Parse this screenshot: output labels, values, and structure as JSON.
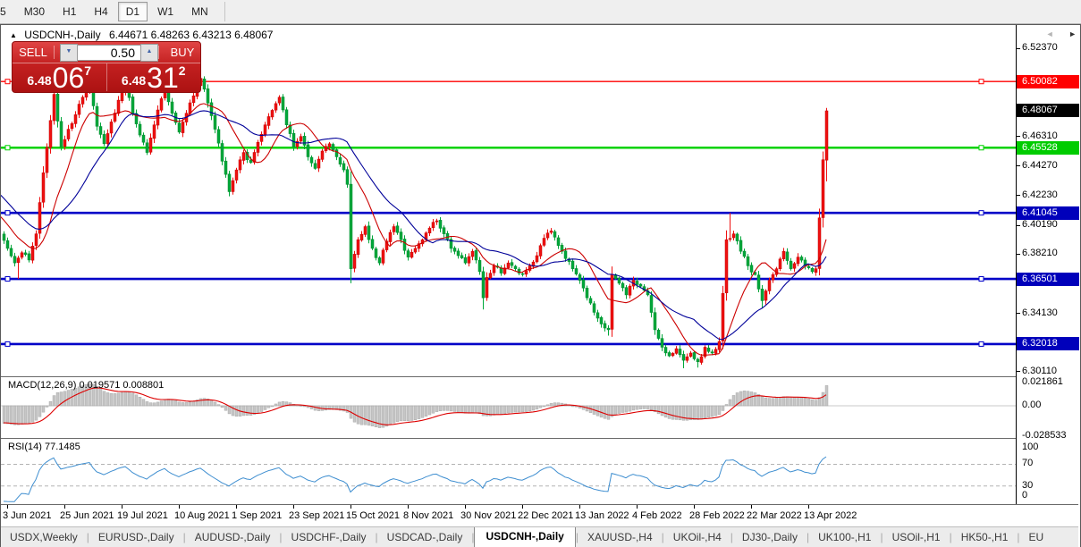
{
  "toolbar": {
    "timeframes": [
      "5",
      "M30",
      "H1",
      "H4",
      "D1",
      "W1",
      "MN"
    ],
    "active": "D1"
  },
  "title": {
    "collapse_icon": "▲",
    "symbol_label": "USDCNH-,Daily",
    "ohlc": "6.44671 6.48263 6.43213 6.48067"
  },
  "trade_panel": {
    "sell_label": "SELL",
    "buy_label": "BUY",
    "volume": "0.50",
    "volume_down_icon": "▼",
    "volume_up_icon": "▲",
    "sell_price": {
      "prefix": "6.48",
      "big": "06",
      "sup": "7"
    },
    "buy_price": {
      "prefix": "6.48",
      "big": "31",
      "sup": "2"
    }
  },
  "price_axis": {
    "plain_ticks": [
      {
        "text": "6.52370",
        "price": 6.5237
      },
      {
        "text": "6.46310",
        "price": 6.4631
      },
      {
        "text": "6.44270",
        "price": 6.4427
      },
      {
        "text": "6.42230",
        "price": 6.4223
      },
      {
        "text": "6.40190",
        "price": 6.4019
      },
      {
        "text": "6.38210",
        "price": 6.3821
      },
      {
        "text": "6.36170",
        "price": 6.3617
      },
      {
        "text": "6.34130",
        "price": 6.3413
      },
      {
        "text": "6.30110",
        "price": 6.3011
      }
    ],
    "line_labels": [
      {
        "text": "6.50082",
        "price": 6.50082,
        "bg": "#ff0000",
        "fg": "#ffffff",
        "name": "resistance-price-label"
      },
      {
        "text": "6.48067",
        "price": 6.48067,
        "bg": "#000000",
        "fg": "#ffffff",
        "name": "current-price-label"
      },
      {
        "text": "6.45528",
        "price": 6.45528,
        "bg": "#00cc00",
        "fg": "#ffffff",
        "name": "green-level-label"
      },
      {
        "text": "6.41045",
        "price": 6.41045,
        "bg": "#0000bb",
        "fg": "#ffffff",
        "name": "blue-level-1-label"
      },
      {
        "text": "6.36501",
        "price": 6.36501,
        "bg": "#0000bb",
        "fg": "#ffffff",
        "name": "blue-level-2-label"
      },
      {
        "text": "6.32018",
        "price": 6.32018,
        "bg": "#0000bb",
        "fg": "#ffffff",
        "name": "blue-level-3-label"
      }
    ]
  },
  "macd": {
    "label": "MACD(12,26,9) 0.019571 0.008801",
    "ticks": [
      {
        "text": "0.021861",
        "value": 0.021861
      },
      {
        "text": "0.00",
        "value": 0
      },
      {
        "text": "-0.028533",
        "value": -0.028533
      }
    ]
  },
  "rsi": {
    "label": "RSI(14) 77.1485",
    "ticks": [
      {
        "text": "100",
        "value": 100
      },
      {
        "text": "70",
        "value": 70
      },
      {
        "text": "30",
        "value": 30
      },
      {
        "text": "0",
        "value": 0
      }
    ],
    "guide_levels": [
      70,
      30
    ]
  },
  "date_axis": [
    "3 Jun 2021",
    "25 Jun 2021",
    "19 Jul 2021",
    "10 Aug 2021",
    "1 Sep 2021",
    "23 Sep 2021",
    "15 Oct 2021",
    "8 Nov 2021",
    "30 Nov 2021",
    "22 Dec 2021",
    "13 Jan 2022",
    "4 Feb 2022",
    "28 Feb 2022",
    "22 Mar 2022",
    "13 Apr 2022"
  ],
  "tabs": {
    "items": [
      "USDX,Weekly",
      "EURUSD-,Daily",
      "AUDUSD-,Daily",
      "USDCHF-,Daily",
      "USDCAD-,Daily",
      "USDCNH-,Daily",
      "XAUUSD-,H4",
      "UKOil-,H4",
      "DJ30-,Daily",
      "UK100-,H1",
      "USOil-,H1",
      "HK50-,H1",
      "EU"
    ],
    "active_index": 5,
    "scroll_left_icon": "◄",
    "scroll_right_icon": "►"
  },
  "chart_data": {
    "type": "candlestick",
    "symbol": "USDCNH",
    "timeframe": "Daily",
    "bars_visible": 230,
    "visible_range": {
      "high": 6.5237,
      "low": 6.298
    },
    "last_bar_ohlc": {
      "open": 6.44671,
      "high": 6.48263,
      "low": 6.43213,
      "close": 6.48067
    },
    "levels": {
      "hlines": [
        {
          "price": 6.50082,
          "color": "#ff0000",
          "width": 1.4,
          "name": "resistance-line"
        },
        {
          "price": 6.45528,
          "color": "#00d200",
          "width": 2.6,
          "name": "green-support-line"
        },
        {
          "price": 6.41045,
          "color": "#0000c8",
          "width": 2.6,
          "name": "blue-line-1"
        },
        {
          "price": 6.36501,
          "color": "#0000c8",
          "width": 2.6,
          "name": "blue-line-2"
        },
        {
          "price": 6.32018,
          "color": "#0000c8",
          "width": 2.6,
          "name": "blue-line-3"
        }
      ]
    },
    "indicators": {
      "ma_fast_period": 12,
      "ma_slow_period": 24,
      "macd": {
        "fast": 12,
        "slow": 26,
        "signal": 9,
        "value": 0.019571,
        "signal_value": 0.008801
      },
      "rsi": {
        "period": 14,
        "value": 77.1485
      }
    },
    "colors": {
      "bull": "#ee1111",
      "bull_dark": "#c40000",
      "bear": "#00a73a",
      "bear_dark": "#008a2e",
      "ma_fast": "#cc0000",
      "ma_slow": "#000099",
      "macd_hist": "#c6c6c6",
      "macd_hist_edge": "#9e9e9e",
      "macd_signal": "#dd0000",
      "rsi_line": "#3e8ed0",
      "rsi_guide": "#b4b4b4"
    },
    "price_path_keyframes": [
      [
        0,
        6.386
      ],
      [
        2,
        6.376
      ],
      [
        4,
        6.383
      ],
      [
        6,
        6.378
      ],
      [
        8,
        6.396
      ],
      [
        10,
        6.438
      ],
      [
        12,
        6.474
      ],
      [
        13,
        6.492
      ],
      [
        15,
        6.456
      ],
      [
        17,
        6.468
      ],
      [
        19,
        6.478
      ],
      [
        21,
        6.49
      ],
      [
        23,
        6.5
      ],
      [
        25,
        6.47
      ],
      [
        27,
        6.458
      ],
      [
        29,
        6.473
      ],
      [
        31,
        6.488
      ],
      [
        33,
        6.498
      ],
      [
        35,
        6.479
      ],
      [
        37,
        6.464
      ],
      [
        39,
        6.452
      ],
      [
        41,
        6.471
      ],
      [
        43,
        6.489
      ],
      [
        44,
        6.497
      ],
      [
        46,
        6.479
      ],
      [
        48,
        6.466
      ],
      [
        50,
        6.479
      ],
      [
        52,
        6.491
      ],
      [
        54,
        6.503
      ],
      [
        56,
        6.486
      ],
      [
        58,
        6.468
      ],
      [
        60,
        6.446
      ],
      [
        62,
        6.425
      ],
      [
        64,
        6.44
      ],
      [
        66,
        6.452
      ],
      [
        68,
        6.445
      ],
      [
        70,
        6.459
      ],
      [
        72,
        6.471
      ],
      [
        74,
        6.481
      ],
      [
        76,
        6.49
      ],
      [
        78,
        6.471
      ],
      [
        80,
        6.456
      ],
      [
        82,
        6.463
      ],
      [
        84,
        6.449
      ],
      [
        86,
        6.441
      ],
      [
        88,
        6.453
      ],
      [
        90,
        6.458
      ],
      [
        92,
        6.449
      ],
      [
        94,
        6.44
      ],
      [
        95,
        6.43
      ],
      [
        96,
        6.372
      ],
      [
        97,
        6.382
      ],
      [
        98,
        6.392
      ],
      [
        100,
        6.401
      ],
      [
        102,
        6.386
      ],
      [
        104,
        6.376
      ],
      [
        106,
        6.391
      ],
      [
        108,
        6.401
      ],
      [
        110,
        6.392
      ],
      [
        112,
        6.38
      ],
      [
        114,
        6.386
      ],
      [
        116,
        6.392
      ],
      [
        118,
        6.4
      ],
      [
        120,
        6.405
      ],
      [
        122,
        6.396
      ],
      [
        124,
        6.386
      ],
      [
        126,
        6.381
      ],
      [
        128,
        6.376
      ],
      [
        130,
        6.384
      ],
      [
        132,
        6.37
      ],
      [
        133,
        6.352
      ],
      [
        134,
        6.366
      ],
      [
        136,
        6.374
      ],
      [
        138,
        6.369
      ],
      [
        140,
        6.376
      ],
      [
        142,
        6.372
      ],
      [
        144,
        6.368
      ],
      [
        146,
        6.374
      ],
      [
        148,
        6.381
      ],
      [
        150,
        6.393
      ],
      [
        152,
        6.398
      ],
      [
        154,
        6.388
      ],
      [
        156,
        6.379
      ],
      [
        158,
        6.372
      ],
      [
        160,
        6.364
      ],
      [
        162,
        6.352
      ],
      [
        164,
        6.342
      ],
      [
        166,
        6.334
      ],
      [
        168,
        6.33
      ],
      [
        169,
        6.368
      ],
      [
        171,
        6.362
      ],
      [
        173,
        6.354
      ],
      [
        175,
        6.364
      ],
      [
        177,
        6.36
      ],
      [
        179,
        6.354
      ],
      [
        181,
        6.33
      ],
      [
        183,
        6.318
      ],
      [
        185,
        6.312
      ],
      [
        187,
        6.317
      ],
      [
        189,
        6.309
      ],
      [
        191,
        6.314
      ],
      [
        193,
        6.308
      ],
      [
        195,
        6.318
      ],
      [
        197,
        6.314
      ],
      [
        199,
        6.322
      ],
      [
        200,
        6.355
      ],
      [
        201,
        6.392
      ],
      [
        203,
        6.396
      ],
      [
        205,
        6.384
      ],
      [
        207,
        6.374
      ],
      [
        209,
        6.368
      ],
      [
        211,
        6.35
      ],
      [
        213,
        6.364
      ],
      [
        215,
        6.372
      ],
      [
        217,
        6.384
      ],
      [
        219,
        6.372
      ],
      [
        221,
        6.38
      ],
      [
        223,
        6.374
      ],
      [
        225,
        6.37
      ],
      [
        226,
        6.372
      ],
      [
        227,
        6.407
      ],
      [
        228,
        6.447
      ],
      [
        229,
        6.48067
      ]
    ],
    "wick_overrides": {
      "3": {
        "low": 6.365
      },
      "13": {
        "high": 6.511
      },
      "23": {
        "high": 6.508
      },
      "33": {
        "high": 6.514
      },
      "44": {
        "high": 6.507
      },
      "54": {
        "high": 6.5135
      },
      "96": {
        "low": 6.362
      },
      "133": {
        "low": 6.344
      },
      "168": {
        "low": 6.326
      },
      "189": {
        "low": 6.3035
      },
      "193": {
        "low": 6.304
      },
      "202": {
        "high": 6.4105
      },
      "211": {
        "low": 6.345
      }
    }
  }
}
